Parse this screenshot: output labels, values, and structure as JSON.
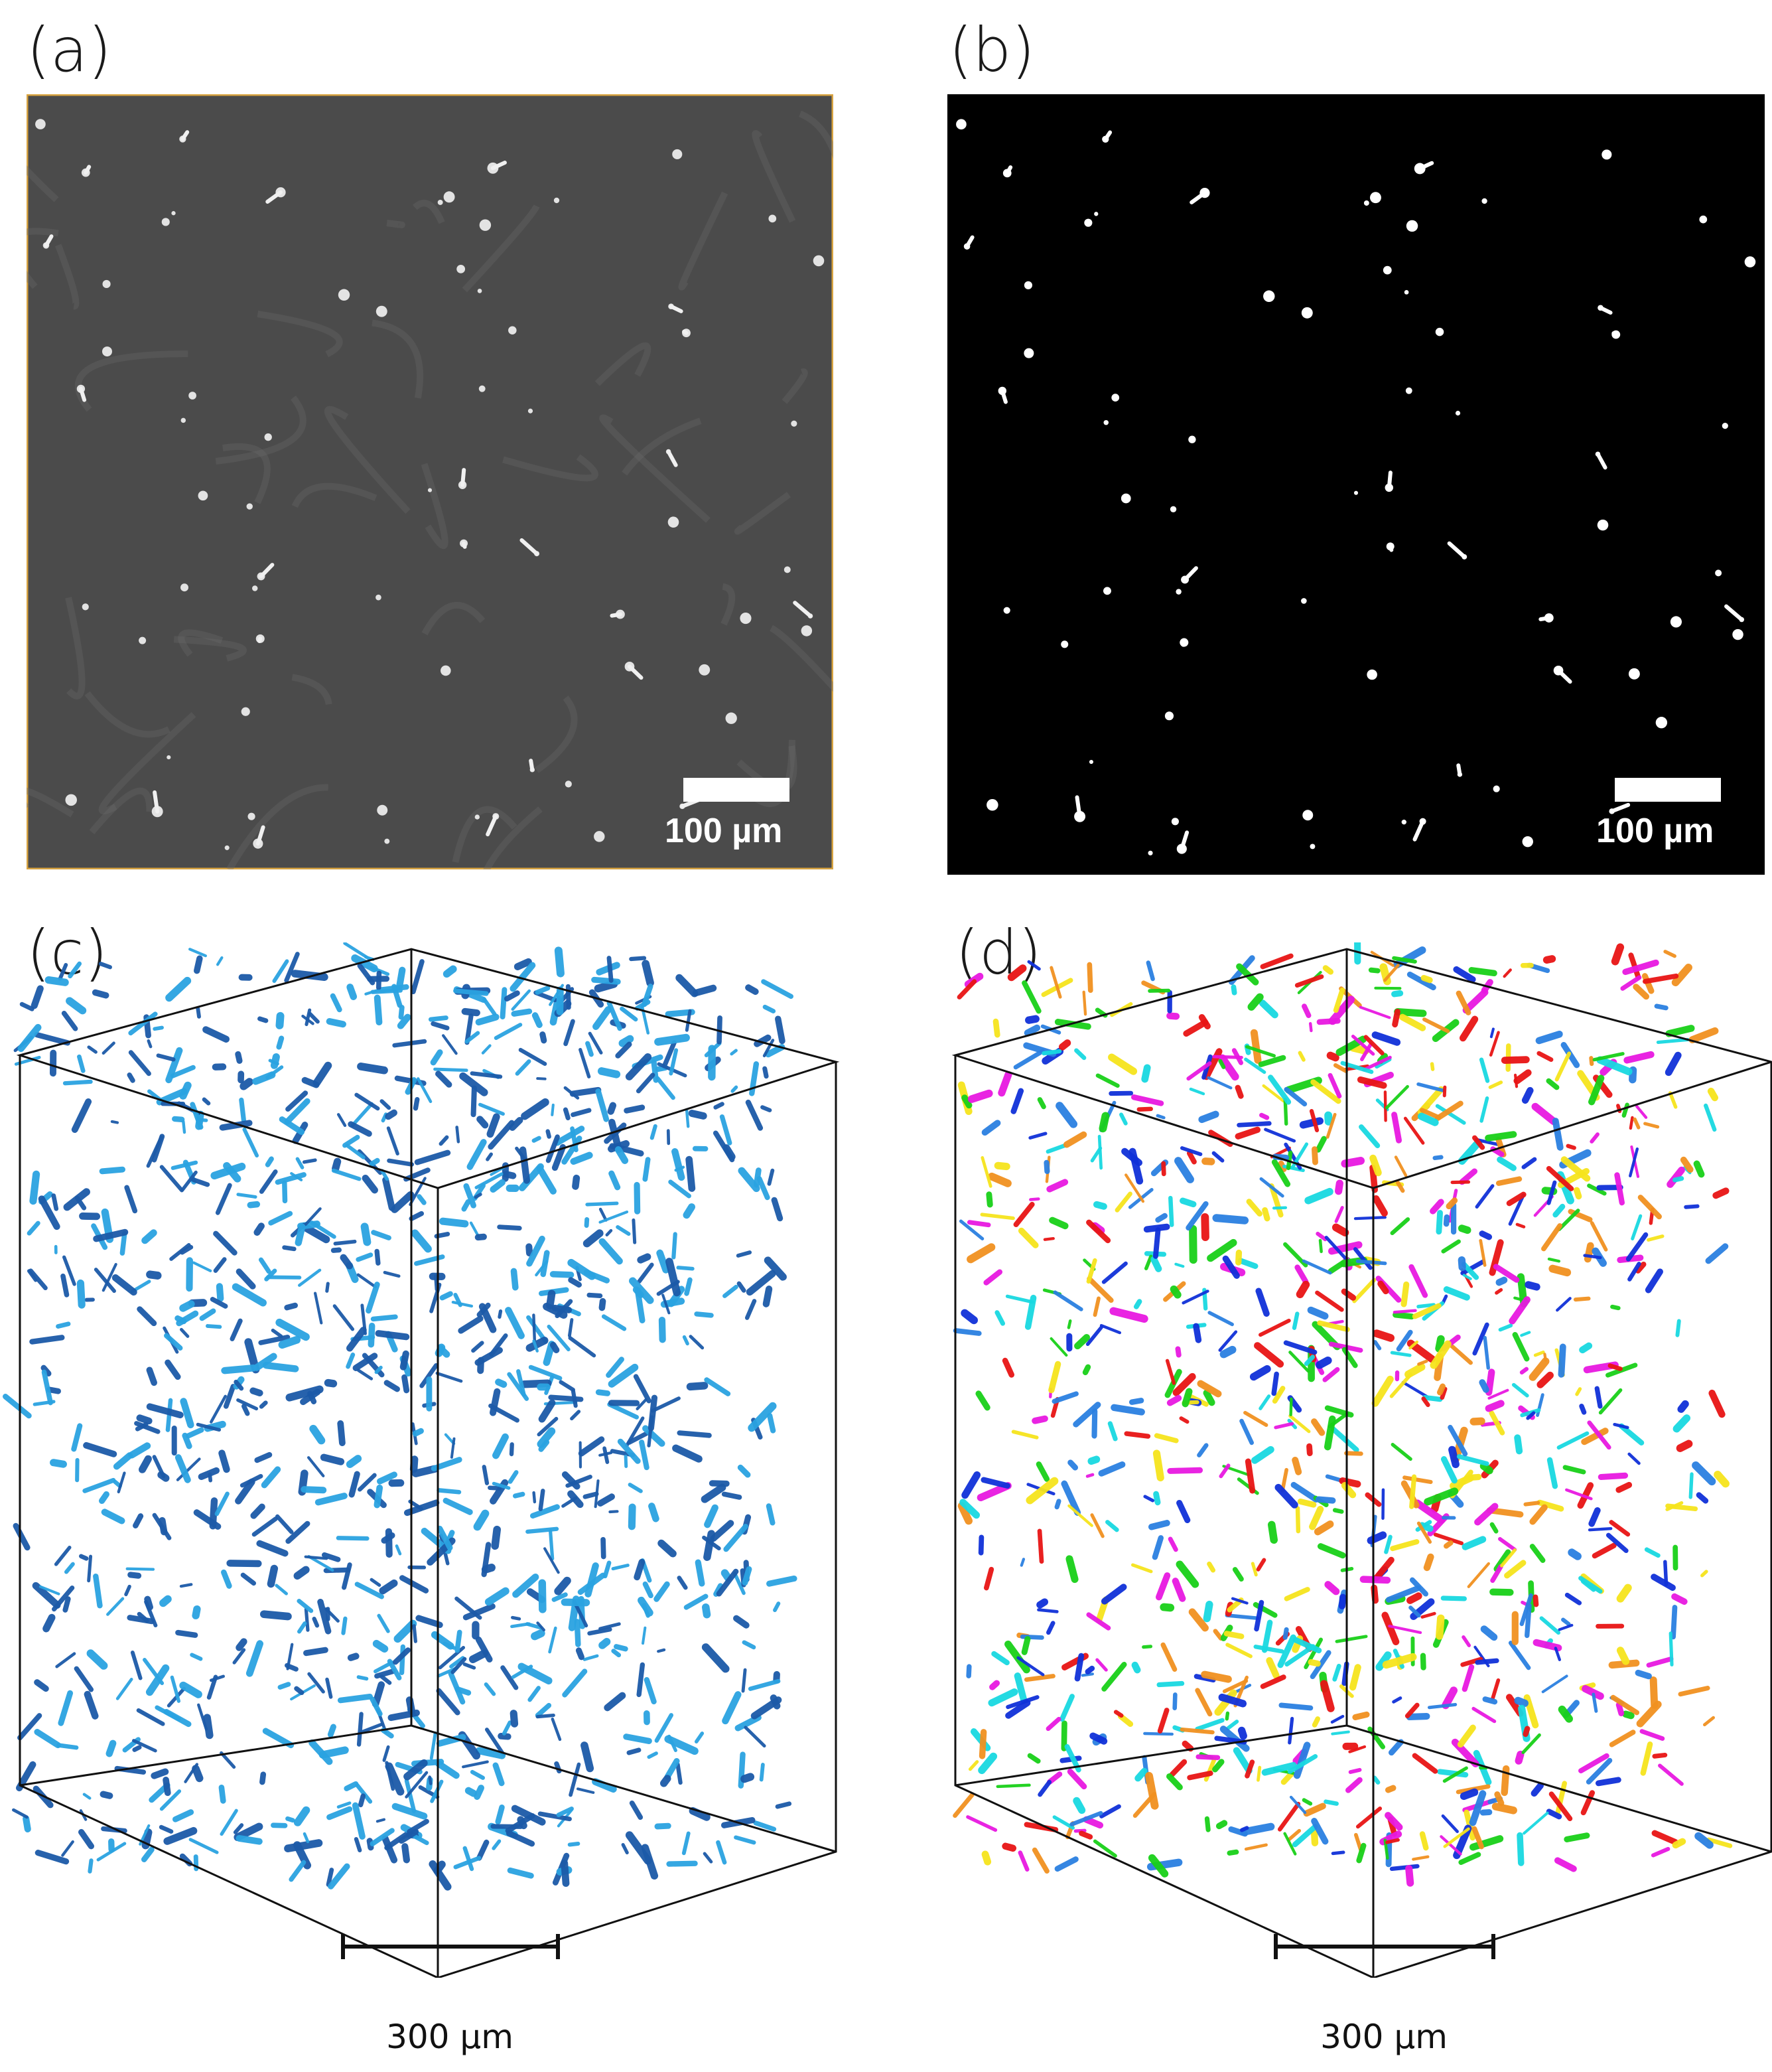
{
  "panels": {
    "a": {
      "label": "(a)",
      "scale_label": "100 µm"
    },
    "b": {
      "label": "(b)",
      "scale_label": "100 µm"
    },
    "c": {
      "label": "(c)",
      "scale_label": "300 µm"
    },
    "d": {
      "label": "(d)",
      "scale_label": "300 µm"
    }
  },
  "colors": {
    "micrograph_bg": "#4b4b4b",
    "micrograph_border": "#d9a441",
    "binary_bg": "#000000",
    "network_dark": "#1b5aa8",
    "network_light": "#2aa2e0",
    "segment_palette": [
      "#e81414",
      "#18d018",
      "#1030d8",
      "#f5e41c",
      "#e818e0",
      "#18d8e0",
      "#f09020",
      "#2a80e0"
    ]
  }
}
